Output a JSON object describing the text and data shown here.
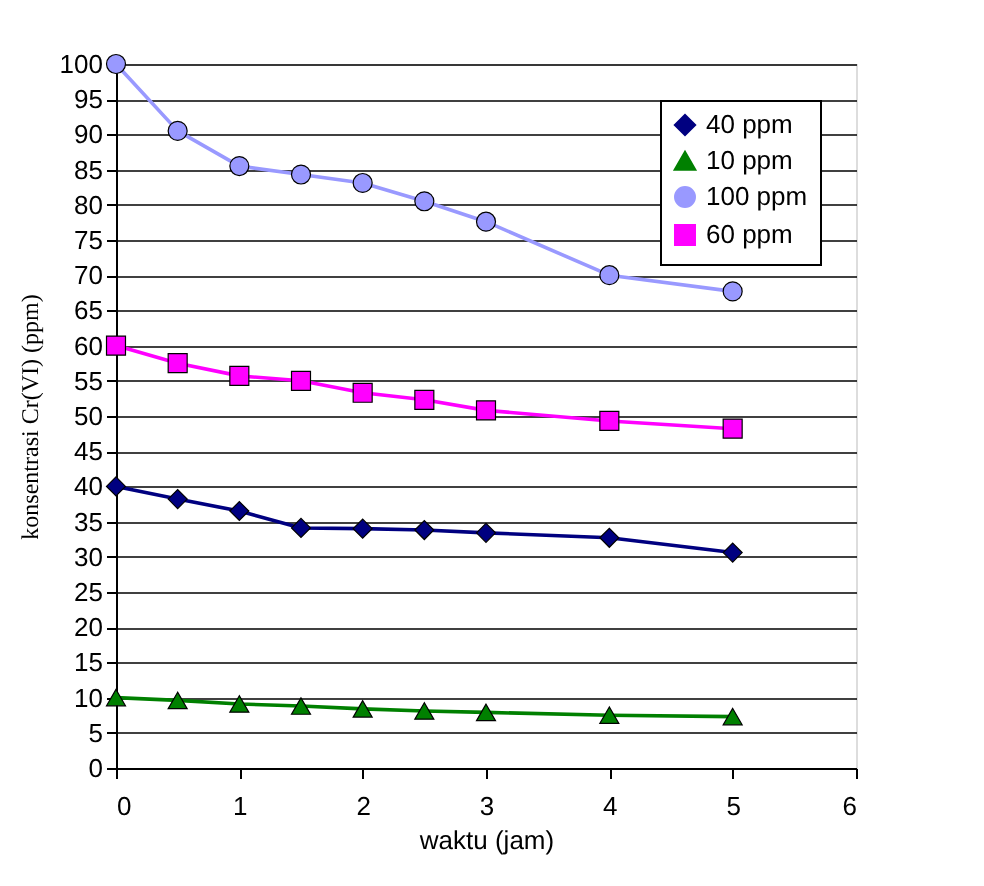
{
  "chart_data": {
    "type": "line",
    "xlabel": "waktu (jam)",
    "ylabel": "konsentrasi Cr(VI) (ppm)",
    "x": [
      0,
      0.5,
      1,
      1.5,
      2,
      2.5,
      3,
      4,
      5
    ],
    "series": [
      {
        "name": "40 ppm",
        "color": "#000080",
        "marker": "diamond",
        "values": [
          40,
          38.2,
          36.5,
          34.1,
          34,
          33.8,
          33.4,
          32.7,
          30.6
        ]
      },
      {
        "name": "10 ppm",
        "color": "#008000",
        "marker": "triangle",
        "values": [
          10,
          9.6,
          9.1,
          8.8,
          8.4,
          8.1,
          7.9,
          7.5,
          7.3
        ]
      },
      {
        "name": "100 ppm",
        "color": "#9999ff",
        "marker": "circle",
        "values": [
          100,
          90.5,
          85.5,
          84.3,
          83.1,
          80.5,
          77.6,
          70,
          67.7
        ]
      },
      {
        "name": "60 ppm",
        "color": "#ff00ff",
        "marker": "square",
        "values": [
          60,
          57.5,
          55.7,
          55,
          53.3,
          52.3,
          50.8,
          49.3,
          48.2
        ]
      }
    ],
    "xlim": [
      0,
      6
    ],
    "xticks": [
      0,
      1,
      2,
      3,
      4,
      5,
      6
    ],
    "ylim": [
      0,
      100
    ],
    "yticks": [
      0,
      5,
      10,
      15,
      20,
      25,
      30,
      35,
      40,
      45,
      50,
      55,
      60,
      65,
      70,
      75,
      80,
      85,
      90,
      95,
      100
    ],
    "grid": "y",
    "legend": "top right",
    "line_style": "solid"
  }
}
